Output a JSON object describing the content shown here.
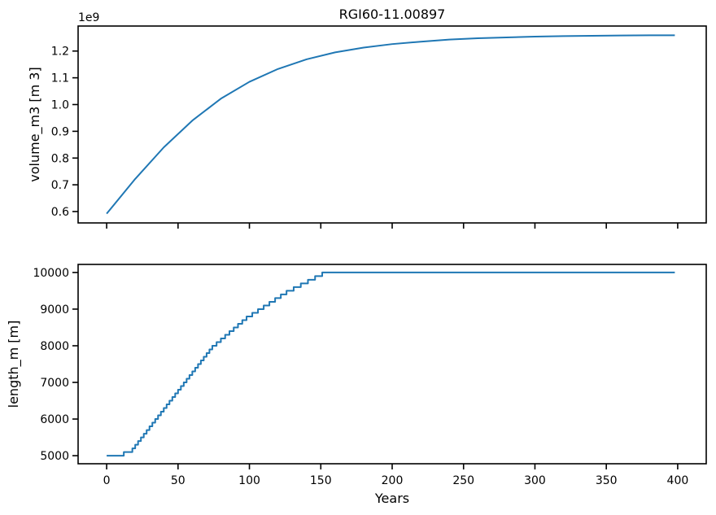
{
  "chart_data": [
    {
      "type": "line",
      "title": "RGI60-11.00897",
      "xlabel": "",
      "ylabel": "volume_m3 [m 3]",
      "offset_text": "1e9",
      "xlim": [
        -20,
        420
      ],
      "ylim": [
        0.5575,
        1.2935
      ],
      "xticks": [
        0,
        50,
        100,
        150,
        200,
        250,
        300,
        350,
        400
      ],
      "xtick_labels_visible": false,
      "yticks": [
        0.6,
        0.7,
        0.8,
        0.9,
        1.0,
        1.1,
        1.2
      ],
      "ytick_labels": [
        "0.6",
        "0.7",
        "0.8",
        "0.9",
        "1.0",
        "1.1",
        "1.2"
      ],
      "grid": false,
      "series": [
        {
          "color": "#1f77b4",
          "x": [
            0,
            20,
            40,
            60,
            80,
            100,
            120,
            140,
            160,
            180,
            200,
            220,
            240,
            260,
            280,
            300,
            320,
            340,
            360,
            380,
            398
          ],
          "y": [
            0.592,
            0.722,
            0.84,
            0.94,
            1.022,
            1.085,
            1.133,
            1.169,
            1.195,
            1.213,
            1.226,
            1.235,
            1.243,
            1.248,
            1.251,
            1.254,
            1.256,
            1.257,
            1.258,
            1.259,
            1.259
          ]
        }
      ]
    },
    {
      "type": "line",
      "title": "",
      "xlabel": "Years",
      "ylabel": "length_m [m]",
      "xlim": [
        -20,
        420
      ],
      "ylim": [
        4780,
        10220
      ],
      "xticks": [
        0,
        50,
        100,
        150,
        200,
        250,
        300,
        350,
        400
      ],
      "xtick_labels": [
        "0",
        "50",
        "100",
        "150",
        "200",
        "250",
        "300",
        "350",
        "400"
      ],
      "yticks": [
        5000,
        6000,
        7000,
        8000,
        9000,
        10000
      ],
      "ytick_labels": [
        "5000",
        "6000",
        "7000",
        "8000",
        "9000",
        "10000"
      ],
      "grid": false,
      "series": [
        {
          "color": "#1f77b4",
          "step": true,
          "x": [
            0,
            12,
            14,
            18,
            20,
            22,
            24,
            26,
            28,
            30,
            32,
            34,
            36,
            38,
            40,
            42,
            44,
            46,
            48,
            50,
            52,
            54,
            56,
            58,
            60,
            62,
            64,
            66,
            68,
            70,
            72,
            74,
            77,
            80,
            83,
            86,
            89,
            92,
            95,
            98,
            102,
            106,
            110,
            114,
            118,
            122,
            126,
            131,
            136,
            141,
            146,
            151,
            158,
            166,
            175,
            185,
            198,
            214,
            236,
            281,
            398
          ],
          "y": [
            5000,
            5100,
            5100,
            5200,
            5300,
            5400,
            5500,
            5600,
            5700,
            5800,
            5900,
            6000,
            6100,
            6200,
            6300,
            6400,
            6500,
            6600,
            6700,
            6800,
            6900,
            7000,
            7100,
            7200,
            7300,
            7400,
            7500,
            7600,
            7700,
            7800,
            7900,
            8000,
            8100,
            8200,
            8300,
            8400,
            8500,
            8600,
            8700,
            8800,
            8900,
            9000,
            9100,
            9200,
            9300,
            9400,
            9500,
            9600,
            9700,
            9800,
            9900,
            10000,
            10000,
            10000,
            10000,
            10000,
            10000,
            10000,
            10000,
            10000,
            10000
          ]
        }
      ]
    }
  ]
}
